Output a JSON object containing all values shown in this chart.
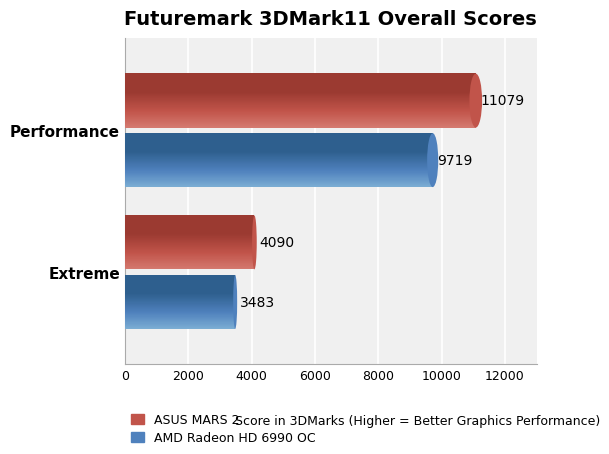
{
  "title": "Futuremark 3DMark11 Overall Scores",
  "categories": [
    "Extreme",
    "Performance"
  ],
  "series": [
    {
      "label": "ASUS MARS 2",
      "color_main": "#C1544A",
      "color_light": "#D4796F",
      "color_dark": "#9B3A31",
      "values": [
        4090,
        11079
      ]
    },
    {
      "label": "AMD Radeon HD 6990 OC",
      "color_main": "#4F81BD",
      "color_light": "#7BADD3",
      "color_dark": "#2E5F8E",
      "values": [
        3483,
        9719
      ]
    }
  ],
  "xlabel": "Score in 3DMarks (Higher = Better Graphics Performance)",
  "xlim": [
    0,
    13000
  ],
  "xticks": [
    0,
    2000,
    4000,
    6000,
    8000,
    10000,
    12000
  ],
  "bar_height": 0.38,
  "annotation_fontsize": 10,
  "title_fontsize": 14,
  "legend_fontsize": 9,
  "xlabel_fontsize": 9,
  "ytick_fontsize": 11,
  "xtick_fontsize": 9,
  "background_color": "#FFFFFF",
  "plot_bg_color": "#F0F0F0",
  "grid_color": "#FFFFFF",
  "label_color": "#000000"
}
